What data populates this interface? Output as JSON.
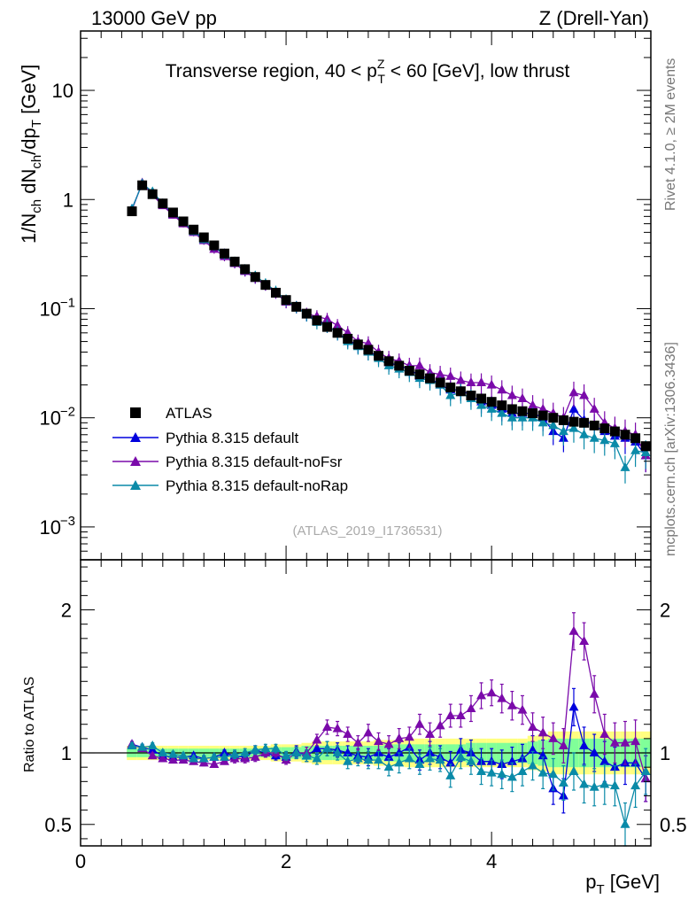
{
  "header": {
    "left": "13000 GeV pp",
    "right": "Z (Drell-Yan)"
  },
  "side_text": {
    "top": "Rivet 4.1.0, ≥ 2M events",
    "bottom": "mcplots.cern.ch [arXiv:1306.3436]"
  },
  "watermark": "(ATLAS_2019_I1736531)",
  "colors": {
    "atlas": "#000000",
    "default": "#0000dd",
    "noFsr": "#7a0aaa",
    "noRap": "#0a8aa8",
    "band_yellow": "#ffff80",
    "band_green": "#80ff99"
  },
  "chart_data": [
    {
      "type": "scatter",
      "title": "Transverse region, 40 < p_T^Z < 60 [GeV], low thrust",
      "title_parts": {
        "a": "Transverse region, 40 < p",
        "sub": "T",
        "sup": "Z",
        "b": " < 60 [GeV], low thrust"
      },
      "ylabel": "1/N_ch dN_ch/dp_T [GeV]",
      "ylabel_parts": {
        "p1": "1/N",
        "s1": "ch",
        "p2": " dN",
        "s2": "ch",
        "p3": "/dp",
        "s3": "T",
        "p4": " [GeV]"
      },
      "yscale": "log",
      "xlim": [
        0,
        5.55
      ],
      "ylim": [
        0.0005,
        35
      ],
      "yticks": [
        {
          "v": 0.001,
          "b": "10",
          "e": "−3"
        },
        {
          "v": 0.01,
          "b": "10",
          "e": "−2"
        },
        {
          "v": 0.1,
          "b": "10",
          "e": "−1"
        },
        {
          "v": 1,
          "b": "1",
          "e": ""
        },
        {
          "v": 10,
          "b": "10",
          "e": ""
        }
      ],
      "legend": {
        "position": "bottom-left",
        "entries": [
          "ATLAS",
          "Pythia 8.315 default",
          "Pythia 8.315 default-noFsr",
          "Pythia 8.315 default-noRap"
        ]
      },
      "x": [
        0.5,
        0.6,
        0.7,
        0.8,
        0.9,
        1.0,
        1.1,
        1.2,
        1.3,
        1.4,
        1.5,
        1.6,
        1.7,
        1.8,
        1.9,
        2.0,
        2.1,
        2.2,
        2.3,
        2.4,
        2.5,
        2.6,
        2.7,
        2.8,
        2.9,
        3.0,
        3.1,
        3.2,
        3.3,
        3.4,
        3.5,
        3.6,
        3.7,
        3.8,
        3.9,
        4.0,
        4.1,
        4.2,
        4.3,
        4.4,
        4.5,
        4.6,
        4.7,
        4.8,
        4.9,
        5.0,
        5.1,
        5.2,
        5.3,
        5.4,
        5.5
      ],
      "series": [
        {
          "name": "ATLAS",
          "marker": "square",
          "values": [
            0.78,
            1.35,
            1.12,
            0.92,
            0.76,
            0.63,
            0.53,
            0.45,
            0.38,
            0.32,
            0.27,
            0.23,
            0.195,
            0.165,
            0.14,
            0.12,
            0.104,
            0.09,
            0.078,
            0.068,
            0.06,
            0.053,
            0.047,
            0.042,
            0.037,
            0.033,
            0.03,
            0.027,
            0.025,
            0.023,
            0.021,
            0.019,
            0.0175,
            0.016,
            0.015,
            0.014,
            0.013,
            0.012,
            0.0115,
            0.011,
            0.0105,
            0.01,
            0.0095,
            0.0092,
            0.009,
            0.0085,
            0.008,
            0.0075,
            0.007,
            0.0065,
            0.0055
          ]
        },
        {
          "name": "Pythia 8.315 default",
          "marker": "triangle",
          "values": [
            0.82,
            1.4,
            1.14,
            0.9,
            0.73,
            0.61,
            0.52,
            0.43,
            0.37,
            0.32,
            0.26,
            0.22,
            0.19,
            0.165,
            0.14,
            0.115,
            0.104,
            0.088,
            0.08,
            0.07,
            0.06,
            0.052,
            0.046,
            0.04,
            0.037,
            0.032,
            0.03,
            0.028,
            0.024,
            0.023,
            0.02,
            0.018,
            0.018,
            0.016,
            0.014,
            0.013,
            0.012,
            0.011,
            0.011,
            0.011,
            0.01,
            0.0075,
            0.0065,
            0.012,
            0.0095,
            0.0085,
            0.0075,
            0.0068,
            0.0065,
            0.006,
            0.0045
          ]
        },
        {
          "name": "Pythia 8.315 default-noFsr",
          "marker": "triangle",
          "values": [
            0.8,
            1.42,
            1.1,
            0.88,
            0.72,
            0.6,
            0.5,
            0.42,
            0.35,
            0.3,
            0.26,
            0.22,
            0.19,
            0.165,
            0.14,
            0.115,
            0.104,
            0.09,
            0.085,
            0.08,
            0.07,
            0.06,
            0.05,
            0.048,
            0.04,
            0.035,
            0.033,
            0.03,
            0.03,
            0.026,
            0.025,
            0.024,
            0.022,
            0.021,
            0.021,
            0.02,
            0.018,
            0.016,
            0.015,
            0.013,
            0.012,
            0.011,
            0.01,
            0.017,
            0.016,
            0.012,
            0.009,
            0.008,
            0.0075,
            0.007,
            0.0045
          ]
        },
        {
          "name": "Pythia 8.315 default-noRap",
          "marker": "triangle",
          "values": [
            0.82,
            1.4,
            1.18,
            0.92,
            0.75,
            0.62,
            0.51,
            0.43,
            0.37,
            0.31,
            0.27,
            0.23,
            0.2,
            0.17,
            0.145,
            0.12,
            0.104,
            0.088,
            0.075,
            0.07,
            0.06,
            0.05,
            0.045,
            0.04,
            0.035,
            0.03,
            0.028,
            0.026,
            0.023,
            0.022,
            0.02,
            0.016,
            0.017,
            0.015,
            0.013,
            0.012,
            0.011,
            0.01,
            0.01,
            0.01,
            0.009,
            0.0085,
            0.0075,
            0.008,
            0.007,
            0.0065,
            0.0062,
            0.0058,
            0.0035,
            0.005,
            0.0048
          ]
        }
      ]
    },
    {
      "type": "scatter",
      "ylabel": "Ratio to ATLAS",
      "xlabel": "p_T [GeV]",
      "xlabel_parts": {
        "p": "p",
        "s": "T",
        "u": " [GeV]"
      },
      "xlim": [
        0,
        5.55
      ],
      "ylim": [
        0.35,
        2.35
      ],
      "xticks": [
        0,
        2,
        4
      ],
      "yticks": [
        0.5,
        1,
        2
      ],
      "x": [
        0.5,
        0.6,
        0.7,
        0.8,
        0.9,
        1.0,
        1.1,
        1.2,
        1.3,
        1.4,
        1.5,
        1.6,
        1.7,
        1.8,
        1.9,
        2.0,
        2.1,
        2.2,
        2.3,
        2.4,
        2.5,
        2.6,
        2.7,
        2.8,
        2.9,
        3.0,
        3.1,
        3.2,
        3.3,
        3.4,
        3.5,
        3.6,
        3.7,
        3.8,
        3.9,
        4.0,
        4.1,
        4.2,
        4.3,
        4.4,
        4.5,
        4.6,
        4.7,
        4.8,
        4.9,
        5.0,
        5.1,
        5.2,
        5.3,
        5.4,
        5.5
      ],
      "band_inner": [
        0.03,
        0.03,
        0.03,
        0.03,
        0.03,
        0.03,
        0.03,
        0.03,
        0.03,
        0.03,
        0.03,
        0.03,
        0.03,
        0.03,
        0.04,
        0.04,
        0.04,
        0.05,
        0.05,
        0.05,
        0.05,
        0.05,
        0.05,
        0.05,
        0.05,
        0.06,
        0.06,
        0.06,
        0.06,
        0.06,
        0.06,
        0.06,
        0.06,
        0.07,
        0.07,
        0.07,
        0.07,
        0.07,
        0.07,
        0.08,
        0.09,
        0.1,
        0.1,
        0.1,
        0.1,
        0.1,
        0.1,
        0.1,
        0.1,
        0.1,
        0.1
      ],
      "band_outer": [
        0.05,
        0.05,
        0.05,
        0.05,
        0.05,
        0.05,
        0.05,
        0.05,
        0.05,
        0.05,
        0.05,
        0.05,
        0.05,
        0.05,
        0.06,
        0.06,
        0.06,
        0.07,
        0.08,
        0.08,
        0.08,
        0.08,
        0.08,
        0.08,
        0.09,
        0.09,
        0.09,
        0.1,
        0.1,
        0.1,
        0.1,
        0.1,
        0.1,
        0.1,
        0.1,
        0.1,
        0.1,
        0.1,
        0.1,
        0.12,
        0.13,
        0.15,
        0.15,
        0.15,
        0.15,
        0.15,
        0.15,
        0.15,
        0.15,
        0.15,
        0.15
      ],
      "series": [
        {
          "name": "Pythia 8.315 default",
          "values": [
            1.06,
            1.04,
            1.02,
            0.98,
            0.97,
            0.97,
            0.98,
            0.96,
            0.97,
            1.0,
            0.98,
            0.97,
            1.02,
            1.0,
            0.98,
            0.97,
            1.01,
            0.98,
            1.03,
            1.03,
            1.02,
            1.0,
            0.98,
            0.97,
            1.0,
            0.97,
            1.0,
            1.04,
            0.95,
            1.0,
            0.97,
            0.93,
            1.02,
            1.0,
            0.94,
            0.94,
            0.92,
            0.94,
            0.96,
            1.02,
            0.98,
            0.75,
            0.7,
            1.32,
            1.05,
            1.0,
            0.94,
            0.9,
            0.93,
            0.93,
            0.82
          ],
          "err": [
            0.02,
            0.02,
            0.02,
            0.02,
            0.02,
            0.02,
            0.02,
            0.02,
            0.02,
            0.02,
            0.03,
            0.03,
            0.03,
            0.03,
            0.03,
            0.03,
            0.04,
            0.04,
            0.04,
            0.05,
            0.05,
            0.05,
            0.05,
            0.06,
            0.06,
            0.06,
            0.07,
            0.07,
            0.07,
            0.08,
            0.08,
            0.08,
            0.08,
            0.09,
            0.09,
            0.09,
            0.1,
            0.1,
            0.1,
            0.1,
            0.11,
            0.11,
            0.12,
            0.13,
            0.13,
            0.13,
            0.14,
            0.14,
            0.15,
            0.15,
            0.16
          ]
        },
        {
          "name": "Pythia 8.315 default-noFsr",
          "values": [
            1.06,
            1.03,
            0.98,
            0.96,
            0.95,
            0.95,
            0.94,
            0.93,
            0.92,
            0.94,
            0.96,
            0.96,
            0.97,
            1.0,
            1.0,
            0.95,
            1.0,
            1.0,
            1.09,
            1.18,
            1.17,
            1.13,
            1.07,
            1.14,
            1.08,
            1.06,
            1.1,
            1.11,
            1.2,
            1.13,
            1.19,
            1.26,
            1.26,
            1.31,
            1.4,
            1.42,
            1.38,
            1.33,
            1.3,
            1.18,
            1.14,
            1.1,
            1.05,
            1.85,
            1.78,
            1.41,
            1.13,
            1.07,
            1.07,
            1.08,
            0.82
          ],
          "err": [
            0.02,
            0.02,
            0.02,
            0.02,
            0.02,
            0.02,
            0.02,
            0.02,
            0.02,
            0.02,
            0.03,
            0.03,
            0.03,
            0.03,
            0.03,
            0.03,
            0.04,
            0.04,
            0.04,
            0.05,
            0.05,
            0.05,
            0.05,
            0.06,
            0.06,
            0.06,
            0.07,
            0.07,
            0.07,
            0.08,
            0.08,
            0.08,
            0.08,
            0.09,
            0.09,
            0.09,
            0.1,
            0.1,
            0.1,
            0.1,
            0.11,
            0.11,
            0.12,
            0.13,
            0.13,
            0.13,
            0.14,
            0.14,
            0.15,
            0.15,
            0.16
          ]
        },
        {
          "name": "Pythia 8.315 default-noRap",
          "values": [
            1.05,
            1.04,
            1.05,
            1.0,
            0.99,
            0.98,
            0.96,
            0.96,
            0.97,
            0.97,
            0.99,
            1.0,
            1.02,
            1.03,
            1.03,
            0.98,
            1.0,
            0.98,
            0.96,
            1.03,
            1.0,
            0.94,
            0.96,
            0.95,
            0.95,
            0.9,
            0.93,
            0.96,
            0.92,
            0.96,
            0.95,
            0.84,
            0.97,
            0.94,
            0.87,
            0.86,
            0.85,
            0.83,
            0.87,
            0.91,
            0.86,
            0.85,
            0.79,
            0.87,
            0.78,
            0.76,
            0.78,
            0.77,
            0.5,
            0.77,
            0.87
          ],
          "err": [
            0.02,
            0.02,
            0.02,
            0.02,
            0.02,
            0.02,
            0.02,
            0.02,
            0.02,
            0.02,
            0.03,
            0.03,
            0.03,
            0.03,
            0.03,
            0.03,
            0.04,
            0.04,
            0.04,
            0.05,
            0.05,
            0.05,
            0.05,
            0.06,
            0.06,
            0.06,
            0.07,
            0.07,
            0.07,
            0.08,
            0.08,
            0.08,
            0.08,
            0.09,
            0.09,
            0.09,
            0.1,
            0.1,
            0.1,
            0.1,
            0.11,
            0.11,
            0.12,
            0.13,
            0.13,
            0.13,
            0.14,
            0.14,
            0.15,
            0.15,
            0.16
          ]
        }
      ]
    }
  ]
}
